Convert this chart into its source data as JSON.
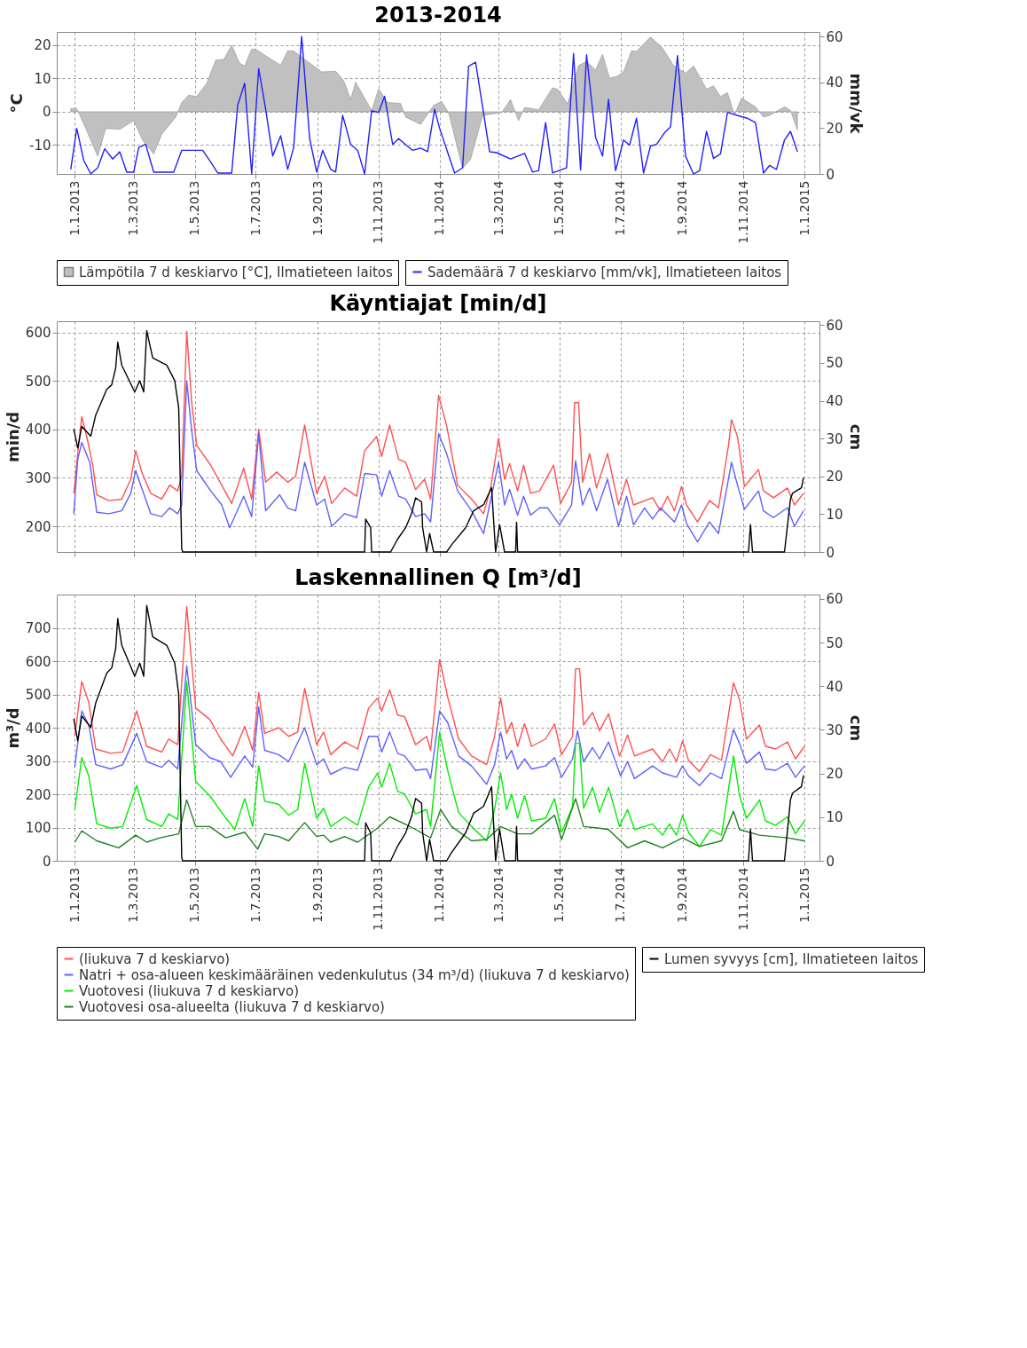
{
  "chart_data": [
    {
      "type": "line",
      "title": "2013-2014",
      "ylabel": "°C",
      "y2label": "mm/vk",
      "xlim": [
        "2012-12-14",
        "2015-01-16"
      ],
      "xticks": [
        {
          "value": "2013-01-01",
          "label": "1.1.2013"
        },
        {
          "value": "2013-03-01",
          "label": "1.3.2013"
        },
        {
          "value": "2013-05-01",
          "label": "1.5.2013"
        },
        {
          "value": "2013-07-01",
          "label": "1.7.2013"
        },
        {
          "value": "2013-09-01",
          "label": "1.9.2013"
        },
        {
          "value": "2013-11-01",
          "label": "1.11.2013"
        },
        {
          "value": "2014-01-01",
          "label": "1.1.2014"
        },
        {
          "value": "2014-03-01",
          "label": "1.3.2014"
        },
        {
          "value": "2014-05-01",
          "label": "1.5.2014"
        },
        {
          "value": "2014-07-01",
          "label": "1.7.2014"
        },
        {
          "value": "2014-09-01",
          "label": "1.9.2014"
        },
        {
          "value": "2014-11-01",
          "label": "1.11.2014"
        },
        {
          "value": "2015-01-01",
          "label": "1.1.2015"
        }
      ],
      "ylim": [
        -18.7,
        24
      ],
      "yticks": [
        -10,
        0,
        10,
        20
      ],
      "y2lim": [
        0,
        62
      ],
      "y2ticks": [
        0,
        20,
        40,
        60
      ],
      "grid": true,
      "legend": "bottom",
      "series": [
        {
          "name": "Lämpötila 7 d keskiarvo [°C], Ilmatieteen laitos",
          "type": "area",
          "color": "#c0c0c0",
          "x": [
            "2012-12-28",
            "2013-01-03",
            "2013-01-12",
            "2013-01-24",
            "2013-02-01",
            "2013-02-15",
            "2013-03-01",
            "2013-03-10",
            "2013-03-21",
            "2013-03-29",
            "2013-04-12",
            "2013-04-18",
            "2013-04-25",
            "2013-05-03",
            "2013-05-13",
            "2013-05-22",
            "2013-05-30",
            "2013-06-07",
            "2013-06-15",
            "2013-06-20",
            "2013-06-27",
            "2013-07-02",
            "2013-07-18",
            "2013-07-26",
            "2013-08-02",
            "2013-08-08",
            "2013-08-20",
            "2013-09-05",
            "2013-09-19",
            "2013-09-27",
            "2013-10-04",
            "2013-10-09",
            "2013-10-17",
            "2013-10-25",
            "2013-11-01",
            "2013-11-10",
            "2013-11-23",
            "2013-11-28",
            "2013-12-13",
            "2013-12-26",
            "2014-01-03",
            "2014-01-10",
            "2014-01-24",
            "2014-02-01",
            "2014-02-13",
            "2014-02-22",
            "2014-03-04",
            "2014-03-13",
            "2014-03-21",
            "2014-03-27",
            "2014-04-10",
            "2014-04-24",
            "2014-04-29",
            "2014-05-09",
            "2014-05-20",
            "2014-05-28",
            "2014-06-06",
            "2014-06-13",
            "2014-06-20",
            "2014-06-28",
            "2014-07-04",
            "2014-07-12",
            "2014-07-17",
            "2014-07-31",
            "2014-08-12",
            "2014-08-23",
            "2014-09-04",
            "2014-09-12",
            "2014-09-25",
            "2014-10-02",
            "2014-10-09",
            "2014-10-16",
            "2014-10-23",
            "2014-10-30",
            "2014-11-13",
            "2014-11-21",
            "2014-11-27",
            "2014-12-12",
            "2014-12-18",
            "2014-12-25"
          ],
          "values": [
            1.0,
            1.0,
            -5,
            -13.4,
            -5,
            -5.3,
            -2.7,
            -8.6,
            -12.7,
            -6.8,
            -1.6,
            2.8,
            5,
            4.6,
            8.5,
            15.5,
            15.7,
            20,
            14.6,
            13.8,
            18.9,
            18.6,
            15.5,
            14,
            18.3,
            18.3,
            15.5,
            12,
            12.2,
            9.4,
            3.7,
            8.9,
            4.6,
            0.4,
            6.9,
            2.8,
            2.5,
            -1.6,
            -3.8,
            1.9,
            3.1,
            -0.3,
            -17,
            -14.3,
            -1.1,
            -0.7,
            -0.3,
            3.7,
            -2.7,
            1.3,
            0.6,
            7.2,
            6.8,
            2.4,
            13.9,
            15.1,
            12.6,
            17.3,
            10.1,
            10.7,
            12,
            18.3,
            18.2,
            22.5,
            19.2,
            13.9,
            11.6,
            13.8,
            6.8,
            7.8,
            4.6,
            5.7,
            -1,
            4.1,
            1.5,
            -1.6,
            -1.1,
            1.5,
            0.4,
            -5.5
          ]
        },
        {
          "name": "Sademäärä 7 d keskiarvo [mm/vk], Ilmatieteen laitos",
          "type": "line",
          "axis": "y2",
          "color": "#2020ff",
          "x": [
            "2012-12-28",
            "2013-01-03",
            "2013-01-10",
            "2013-01-17",
            "2013-01-24",
            "2013-01-31",
            "2013-02-08",
            "2013-02-15",
            "2013-02-22",
            "2013-03-01",
            "2013-03-06",
            "2013-03-13",
            "2013-03-21",
            "2013-04-10",
            "2013-04-18",
            "2013-05-09",
            "2013-05-17",
            "2013-05-24",
            "2013-06-07",
            "2013-06-13",
            "2013-06-20",
            "2013-06-27",
            "2013-07-04",
            "2013-07-11",
            "2013-07-18",
            "2013-07-26",
            "2013-08-02",
            "2013-08-08",
            "2013-08-16",
            "2013-08-24",
            "2013-08-31",
            "2013-09-06",
            "2013-09-14",
            "2013-09-19",
            "2013-09-26",
            "2013-10-04",
            "2013-10-11",
            "2013-10-18",
            "2013-10-25",
            "2013-11-01",
            "2013-11-07",
            "2013-11-15",
            "2013-11-21",
            "2013-12-05",
            "2013-12-13",
            "2013-12-20",
            "2013-12-27",
            "2014-01-01",
            "2014-01-16",
            "2014-01-24",
            "2014-01-30",
            "2014-02-06",
            "2014-02-20",
            "2014-02-27",
            "2014-03-13",
            "2014-03-27",
            "2014-04-04",
            "2014-04-10",
            "2014-04-17",
            "2014-04-24",
            "2014-05-08",
            "2014-05-15",
            "2014-05-22",
            "2014-05-28",
            "2014-06-06",
            "2014-06-13",
            "2014-06-19",
            "2014-06-26",
            "2014-07-04",
            "2014-07-10",
            "2014-07-17",
            "2014-07-24",
            "2014-07-31",
            "2014-08-06",
            "2014-08-14",
            "2014-08-20",
            "2014-08-27",
            "2014-09-04",
            "2014-09-12",
            "2014-09-18",
            "2014-09-25",
            "2014-10-02",
            "2014-10-09",
            "2014-10-16",
            "2014-10-30",
            "2014-11-05",
            "2014-11-13",
            "2014-11-21",
            "2014-11-27",
            "2014-12-04",
            "2014-12-12",
            "2014-12-18",
            "2014-12-25"
          ],
          "values": [
            2,
            19.9,
            5.9,
            0,
            2.7,
            11,
            6.5,
            9.7,
            0.8,
            0.8,
            11.6,
            12.9,
            0.8,
            0.8,
            10.3,
            10.3,
            5.2,
            0.4,
            0.4,
            30,
            39.6,
            0,
            46,
            28.2,
            7.8,
            16.7,
            2,
            11.6,
            60,
            15.4,
            0.8,
            10.3,
            2,
            0.8,
            25.6,
            12.9,
            10.3,
            0,
            27.5,
            26.9,
            33.9,
            12.9,
            15.4,
            10.3,
            11.3,
            9.7,
            28.2,
            19.9,
            0.4,
            2.7,
            47,
            48.8,
            9.7,
            9.3,
            6.5,
            9,
            0.8,
            1.4,
            22.4,
            0.4,
            2.7,
            52.6,
            1.7,
            52,
            16,
            7.8,
            32.6,
            1.4,
            14.8,
            12.6,
            24.3,
            0.4,
            12.2,
            12.9,
            18,
            20.5,
            51.7,
            7.8,
            0,
            1.4,
            18.6,
            6.8,
            8.8,
            26.9,
            25,
            24.3,
            22.4,
            0.4,
            3.7,
            2,
            14.8,
            18.6,
            9.7
          ]
        }
      ]
    },
    {
      "type": "line",
      "title": "Käyntiajat [min/d]",
      "ylabel": "min/d",
      "y2label": "cm",
      "xlim": [
        "2012-12-14",
        "2015-01-16"
      ],
      "xticks": [
        {
          "value": "2013-01-01",
          "label": null
        },
        {
          "value": "2013-03-01",
          "label": null
        },
        {
          "value": "2013-05-01",
          "label": null
        },
        {
          "value": "2013-07-01",
          "label": null
        },
        {
          "value": "2013-09-01",
          "label": null
        },
        {
          "value": "2013-11-01",
          "label": null
        },
        {
          "value": "2014-01-01",
          "label": null
        },
        {
          "value": "2014-03-01",
          "label": null
        },
        {
          "value": "2014-05-01",
          "label": null
        },
        {
          "value": "2014-07-01",
          "label": null
        },
        {
          "value": "2014-09-01",
          "label": null
        },
        {
          "value": "2014-11-01",
          "label": null
        },
        {
          "value": "2015-01-01",
          "label": null
        }
      ],
      "ylim": [
        147,
        623
      ],
      "yticks": [
        200,
        300,
        400,
        500,
        600
      ],
      "y2lim": [
        0,
        61
      ],
      "y2ticks": [
        0,
        10,
        20,
        30,
        40,
        50,
        60
      ],
      "grid": true,
      "tick_labels": "y",
      "series": [
        {
          "color": "#ff5050",
          "x": [
            "2012-12-31",
            "2013-01-04",
            "2013-01-08",
            "2013-01-13",
            "2013-01-19",
            "2013-01-23",
            "2013-02-04",
            "2013-02-17",
            "2013-02-26",
            "2013-03-03",
            "2013-03-09",
            "2013-03-18",
            "2013-03-29",
            "2013-04-06",
            "2013-04-14",
            "2013-04-18",
            "2013-04-23",
            "2013-04-28",
            "2013-05-03",
            "2013-05-17",
            "2013-05-28",
            "2013-06-07",
            "2013-06-19",
            "2013-06-27",
            "2013-07-04",
            "2013-07-11",
            "2013-07-22",
            "2013-08-02",
            "2013-08-10",
            "2013-08-19",
            "2013-08-31",
            "2013-09-08",
            "2013-09-15",
            "2013-09-28",
            "2013-10-10",
            "2013-10-18",
            "2013-10-30",
            "2013-11-04",
            "2013-11-12",
            "2013-11-21",
            "2013-11-28",
            "2013-12-08",
            "2013-12-17",
            "2013-12-23",
            "2013-12-31",
            "2014-01-08",
            "2014-01-19",
            "2014-02-02",
            "2014-02-14",
            "2014-02-21",
            "2014-03-01",
            "2014-03-07",
            "2014-03-12",
            "2014-03-20",
            "2014-03-26",
            "2014-04-02",
            "2014-04-11",
            "2014-04-25",
            "2014-05-02",
            "2014-05-13",
            "2014-05-16",
            "2014-05-20",
            "2014-05-24",
            "2014-05-31",
            "2014-06-07",
            "2014-06-18",
            "2014-06-29",
            "2014-07-07",
            "2014-07-14",
            "2014-08-02",
            "2014-08-10",
            "2014-08-17",
            "2014-08-24",
            "2014-08-31",
            "2014-09-05",
            "2014-09-16",
            "2014-09-28",
            "2014-10-07",
            "2014-10-17",
            "2014-10-20",
            "2014-10-26",
            "2014-11-02",
            "2014-11-16",
            "2014-11-21",
            "2014-12-01",
            "2014-12-15",
            "2014-12-22",
            "2014-12-31"
          ],
          "values": [
            268,
            350,
            426,
            385,
            326,
            265,
            253,
            256,
            297,
            356,
            312,
            268,
            256,
            285,
            273,
            303,
            602,
            455,
            367,
            326,
            285,
            247,
            320,
            256,
            400,
            291,
            312,
            291,
            303,
            409,
            268,
            303,
            247,
            279,
            262,
            356,
            385,
            344,
            409,
            338,
            332,
            276,
            297,
            256,
            470,
            408,
            285,
            256,
            226,
            279,
            382,
            297,
            329,
            273,
            326,
            268,
            273,
            326,
            247,
            291,
            455,
            455,
            291,
            350,
            279,
            350,
            244,
            297,
            244,
            259,
            232,
            262,
            232,
            282,
            244,
            209,
            253,
            238,
            367,
            420,
            385,
            282,
            317,
            273,
            259,
            279,
            244,
            268
          ]
        },
        {
          "color": "#6060ff",
          "x": [
            "2012-12-31",
            "2013-01-04",
            "2013-01-08",
            "2013-01-16",
            "2013-01-23",
            "2013-02-04",
            "2013-02-17",
            "2013-02-26",
            "2013-03-03",
            "2013-03-09",
            "2013-03-18",
            "2013-03-29",
            "2013-04-06",
            "2013-04-14",
            "2013-04-18",
            "2013-04-23",
            "2013-04-28",
            "2013-05-03",
            "2013-05-17",
            "2013-05-28",
            "2013-06-05",
            "2013-06-19",
            "2013-06-27",
            "2013-07-04",
            "2013-07-11",
            "2013-07-25",
            "2013-08-02",
            "2013-08-10",
            "2013-08-19",
            "2013-08-31",
            "2013-09-08",
            "2013-09-15",
            "2013-09-28",
            "2013-10-10",
            "2013-10-18",
            "2013-10-30",
            "2013-11-04",
            "2013-11-12",
            "2013-11-21",
            "2013-11-28",
            "2013-12-08",
            "2013-12-17",
            "2013-12-23",
            "2013-12-31",
            "2014-01-08",
            "2014-01-19",
            "2014-02-02",
            "2014-02-14",
            "2014-03-01",
            "2014-03-07",
            "2014-03-12",
            "2014-03-20",
            "2014-03-26",
            "2014-04-02",
            "2014-04-11",
            "2014-04-19",
            "2014-05-01",
            "2014-05-13",
            "2014-05-17",
            "2014-05-24",
            "2014-05-31",
            "2014-06-07",
            "2014-06-18",
            "2014-06-29",
            "2014-07-07",
            "2014-07-14",
            "2014-07-25",
            "2014-08-02",
            "2014-08-10",
            "2014-08-24",
            "2014-08-31",
            "2014-09-05",
            "2014-09-16",
            "2014-09-28",
            "2014-10-07",
            "2014-10-20",
            "2014-10-26",
            "2014-11-02",
            "2014-11-16",
            "2014-11-21",
            "2014-12-01",
            "2014-12-15",
            "2014-12-22",
            "2014-12-31"
          ],
          "values": [
            226,
            338,
            373,
            332,
            229,
            226,
            232,
            268,
            315,
            279,
            226,
            220,
            238,
            226,
            244,
            500,
            397,
            315,
            273,
            244,
            197,
            262,
            220,
            391,
            232,
            265,
            238,
            232,
            332,
            244,
            256,
            200,
            226,
            218,
            309,
            306,
            262,
            315,
            262,
            256,
            220,
            226,
            209,
            391,
            350,
            273,
            232,
            185,
            332,
            244,
            276,
            223,
            262,
            223,
            238,
            238,
            203,
            244,
            335,
            244,
            279,
            232,
            297,
            200,
            262,
            203,
            238,
            215,
            238,
            209,
            244,
            206,
            168,
            209,
            185,
            332,
            285,
            235,
            273,
            232,
            218,
            238,
            200,
            232
          ]
        },
        {
          "color": "#000000",
          "axis": "y2",
          "x": [
            "2012-12-31",
            "2013-01-04",
            "2013-01-08",
            "2013-01-17",
            "2013-01-22",
            "2013-02-02",
            "2013-02-07",
            "2013-02-11",
            "2013-02-13",
            "2013-02-17",
            "2013-03-02",
            "2013-03-07",
            "2013-03-11",
            "2013-03-14",
            "2013-03-20",
            "2013-04-03",
            "2013-04-11",
            "2013-04-15",
            "2013-04-18",
            "2013-04-19",
            "2013-10-18",
            "2013-10-19",
            "2013-10-24",
            "2013-10-25",
            "2013-11-13",
            "2013-11-20",
            "2013-11-28",
            "2013-12-04",
            "2013-12-08",
            "2013-12-14",
            "2013-12-15",
            "2013-12-19",
            "2013-12-22",
            "2013-12-26",
            "2014-01-08",
            "2014-01-13",
            "2014-01-27",
            "2014-02-04",
            "2014-02-14",
            "2014-02-22",
            "2014-02-26",
            "2014-03-02",
            "2014-03-07",
            "2014-03-18",
            "2014-03-19",
            "2014-03-20",
            "2014-11-06",
            "2014-11-08",
            "2014-11-10",
            "2014-12-12",
            "2014-12-18",
            "2014-12-20",
            "2014-12-29",
            "2014-12-31"
          ],
          "values": [
            32.5,
            27.5,
            33.2,
            30.6,
            36.2,
            43,
            44.2,
            48.7,
            55.5,
            49.4,
            42.3,
            45.3,
            42.3,
            58.5,
            51.3,
            49.4,
            45.3,
            38.1,
            0.8,
            0,
            0,
            8.7,
            6.4,
            0,
            0,
            3.4,
            6.4,
            10.2,
            14.3,
            13.2,
            6.4,
            0,
            4.9,
            0,
            0,
            1.9,
            6.4,
            10.9,
            12.5,
            17,
            0,
            7.2,
            0,
            0,
            7.9,
            0,
            0,
            7.2,
            0,
            0,
            14,
            15.5,
            17,
            19.6
          ]
        }
      ]
    },
    {
      "type": "line",
      "title": "Laskennallinen Q [m³/d]",
      "ylabel": "m³/d",
      "y2label": "cm",
      "xlim": [
        "2012-12-14",
        "2015-01-16"
      ],
      "xticks": [
        {
          "value": "2013-01-01",
          "label": "1.1.2013"
        },
        {
          "value": "2013-03-01",
          "label": "1.3.2013"
        },
        {
          "value": "2013-05-01",
          "label": "1.5.2013"
        },
        {
          "value": "2013-07-01",
          "label": "1.7.2013"
        },
        {
          "value": "2013-09-01",
          "label": "1.9.2013"
        },
        {
          "value": "2013-11-01",
          "label": "1.11.2013"
        },
        {
          "value": "2014-01-01",
          "label": "1.1.2014"
        },
        {
          "value": "2014-03-01",
          "label": "1.3.2014"
        },
        {
          "value": "2014-05-01",
          "label": "1.5.2014"
        },
        {
          "value": "2014-07-01",
          "label": "1.7.2014"
        },
        {
          "value": "2014-09-01",
          "label": "1.9.2014"
        },
        {
          "value": "2014-11-01",
          "label": "1.11.2014"
        },
        {
          "value": "2015-01-01",
          "label": "1.1.2015"
        }
      ],
      "ylim": [
        0,
        800
      ],
      "yticks": [
        0,
        100,
        200,
        300,
        400,
        500,
        600,
        700
      ],
      "y2lim": [
        0,
        61
      ],
      "y2ticks": [
        0,
        10,
        20,
        30,
        40,
        50,
        60
      ],
      "grid": true,
      "legend": "bottom",
      "series": [
        {
          "name": "(liukuva 7 d keskiarvo)",
          "color": "#ff5050",
          "x": [
            "2013-01-01",
            "2013-01-08",
            "2013-01-15",
            "2013-01-22",
            "2013-02-06",
            "2013-02-18",
            "2013-03-04",
            "2013-03-14",
            "2013-03-29",
            "2013-04-05",
            "2013-04-14",
            "2013-04-23",
            "2013-05-02",
            "2013-05-16",
            "2013-05-27",
            "2013-06-08",
            "2013-06-20",
            "2013-06-28",
            "2013-07-04",
            "2013-07-10",
            "2013-07-24",
            "2013-08-03",
            "2013-08-12",
            "2013-08-19",
            "2013-08-31",
            "2013-09-07",
            "2013-09-14",
            "2013-09-28",
            "2013-10-11",
            "2013-10-22",
            "2013-10-31",
            "2013-11-04",
            "2013-11-12",
            "2013-11-20",
            "2013-11-27",
            "2013-12-08",
            "2013-12-19",
            "2013-12-23",
            "2014-01-01",
            "2014-01-09",
            "2014-01-20",
            "2014-02-02",
            "2014-02-17",
            "2014-02-25",
            "2014-03-03",
            "2014-03-09",
            "2014-03-14",
            "2014-03-20",
            "2014-03-27",
            "2014-04-03",
            "2014-04-17",
            "2014-04-26",
            "2014-05-03",
            "2014-05-14",
            "2014-05-17",
            "2014-05-21",
            "2014-05-25",
            "2014-06-03",
            "2014-06-10",
            "2014-06-19",
            "2014-06-30",
            "2014-07-08",
            "2014-07-15",
            "2014-08-02",
            "2014-08-12",
            "2014-08-19",
            "2014-08-26",
            "2014-09-01",
            "2014-09-07",
            "2014-09-18",
            "2014-09-29",
            "2014-10-10",
            "2014-10-18",
            "2014-10-22",
            "2014-10-28",
            "2014-11-04",
            "2014-11-17",
            "2014-11-23",
            "2014-12-03",
            "2014-12-15",
            "2014-12-23",
            "2015-01-01"
          ],
          "values": [
            374,
            539,
            476,
            336,
            323,
            327,
            450,
            344,
            327,
            366,
            349,
            764,
            459,
            425,
            366,
            315,
            404,
            332,
            506,
            383,
            400,
            374,
            387,
            518,
            349,
            387,
            319,
            357,
            336,
            459,
            489,
            450,
            514,
            438,
            433,
            349,
            374,
            332,
            605,
            493,
            366,
            315,
            289,
            374,
            489,
            383,
            416,
            344,
            412,
            344,
            366,
            412,
            319,
            374,
            577,
            577,
            408,
            446,
            391,
            442,
            315,
            378,
            315,
            336,
            298,
            336,
            298,
            361,
            302,
            268,
            319,
            302,
            459,
            535,
            484,
            366,
            408,
            344,
            336,
            357,
            306,
            344
          ]
        },
        {
          "name": "Natri + osa-alueen keskimääräinen vedenkulutus (34 m³/d) (liukuva 7 d keskiarvo)",
          "color": "#6060ff",
          "x": [
            "2013-01-01",
            "2013-01-08",
            "2013-01-15",
            "2013-01-22",
            "2013-02-06",
            "2013-02-18",
            "2013-03-04",
            "2013-03-14",
            "2013-03-29",
            "2013-04-05",
            "2013-04-14",
            "2013-04-23",
            "2013-05-02",
            "2013-05-16",
            "2013-05-27",
            "2013-06-06",
            "2013-06-20",
            "2013-06-28",
            "2013-07-04",
            "2013-07-10",
            "2013-07-24",
            "2013-08-03",
            "2013-08-19",
            "2013-08-31",
            "2013-09-07",
            "2013-09-14",
            "2013-09-28",
            "2013-10-11",
            "2013-10-22",
            "2013-10-31",
            "2013-11-04",
            "2013-11-12",
            "2013-11-20",
            "2013-11-27",
            "2013-12-08",
            "2013-12-19",
            "2013-12-23",
            "2014-01-01",
            "2014-01-09",
            "2014-01-20",
            "2014-02-02",
            "2014-02-17",
            "2014-02-25",
            "2014-03-03",
            "2014-03-09",
            "2014-03-14",
            "2014-03-20",
            "2014-03-27",
            "2014-04-03",
            "2014-04-17",
            "2014-04-26",
            "2014-05-03",
            "2014-05-14",
            "2014-05-19",
            "2014-05-25",
            "2014-06-03",
            "2014-06-10",
            "2014-06-19",
            "2014-07-01",
            "2014-07-08",
            "2014-07-15",
            "2014-08-02",
            "2014-08-12",
            "2014-08-26",
            "2014-09-01",
            "2014-09-07",
            "2014-09-18",
            "2014-09-29",
            "2014-10-10",
            "2014-10-22",
            "2014-10-28",
            "2014-11-04",
            "2014-11-17",
            "2014-11-23",
            "2014-12-03",
            "2014-12-15",
            "2014-12-23",
            "2015-01-01"
          ],
          "values": [
            281,
            450,
            408,
            289,
            276,
            289,
            383,
            298,
            281,
            302,
            276,
            586,
            349,
            310,
            298,
            251,
            315,
            281,
            463,
            332,
            319,
            298,
            400,
            289,
            306,
            260,
            281,
            272,
            374,
            374,
            327,
            387,
            323,
            315,
            272,
            276,
            247,
            450,
            416,
            315,
            285,
            230,
            289,
            387,
            306,
            332,
            276,
            306,
            276,
            285,
            310,
            251,
            306,
            391,
            298,
            340,
            306,
            357,
            255,
            298,
            247,
            285,
            264,
            251,
            285,
            255,
            226,
            264,
            247,
            395,
            353,
            293,
            327,
            276,
            272,
            293,
            251,
            285
          ]
        },
        {
          "name": "Vuotovesi (liukuva 7 d keskiarvo)",
          "color": "#00ee00",
          "x": [
            "2013-01-01",
            "2013-01-08",
            "2013-01-15",
            "2013-01-23",
            "2013-02-06",
            "2013-02-18",
            "2013-03-04",
            "2013-03-14",
            "2013-03-29",
            "2013-04-05",
            "2013-04-14",
            "2013-04-23",
            "2013-05-02",
            "2013-05-16",
            "2013-05-27",
            "2013-06-10",
            "2013-06-20",
            "2013-06-28",
            "2013-07-04",
            "2013-07-10",
            "2013-07-24",
            "2013-08-03",
            "2013-08-12",
            "2013-08-19",
            "2013-08-31",
            "2013-09-07",
            "2013-09-14",
            "2013-09-28",
            "2013-10-11",
            "2013-10-22",
            "2013-10-31",
            "2013-11-04",
            "2013-11-12",
            "2013-11-20",
            "2013-11-27",
            "2013-12-08",
            "2013-12-19",
            "2013-12-23",
            "2014-01-01",
            "2014-01-09",
            "2014-01-20",
            "2014-02-02",
            "2014-02-17",
            "2014-02-25",
            "2014-03-03",
            "2014-03-09",
            "2014-03-14",
            "2014-03-20",
            "2014-03-27",
            "2014-04-03",
            "2014-04-17",
            "2014-04-26",
            "2014-05-03",
            "2014-05-14",
            "2014-05-17",
            "2014-05-21",
            "2014-05-25",
            "2014-06-03",
            "2014-06-10",
            "2014-06-19",
            "2014-06-30",
            "2014-07-08",
            "2014-07-15",
            "2014-08-02",
            "2014-08-12",
            "2014-08-19",
            "2014-08-26",
            "2014-09-01",
            "2014-09-07",
            "2014-09-18",
            "2014-09-29",
            "2014-10-10",
            "2014-10-22",
            "2014-10-28",
            "2014-11-04",
            "2014-11-17",
            "2014-11-23",
            "2014-12-03",
            "2014-12-15",
            "2014-12-23",
            "2015-01-01"
          ],
          "values": [
            154,
            310,
            255,
            111,
            98,
            103,
            226,
            124,
            103,
            141,
            124,
            539,
            238,
            196,
            149,
            94,
            187,
            103,
            285,
            179,
            170,
            137,
            154,
            293,
            128,
            158,
            103,
            132,
            107,
            221,
            264,
            221,
            293,
            209,
            200,
            141,
            154,
            103,
            387,
            272,
            145,
            103,
            60,
            154,
            264,
            154,
            200,
            128,
            196,
            120,
            128,
            187,
            86,
            162,
            353,
            353,
            158,
            221,
            145,
            221,
            103,
            154,
            94,
            111,
            77,
            111,
            77,
            137,
            86,
            43,
            94,
            77,
            315,
            196,
            128,
            183,
            120,
            107,
            132,
            81,
            120
          ]
        },
        {
          "name": "Vuotovesi osa-alueelta (liukuva 7 d keskiarvo)",
          "color": "#208020",
          "x": [
            "2013-01-01",
            "2013-01-08",
            "2013-01-23",
            "2013-02-14",
            "2013-03-03",
            "2013-03-14",
            "2013-03-27",
            "2013-04-15",
            "2013-04-23",
            "2013-05-02",
            "2013-05-16",
            "2013-06-01",
            "2013-06-20",
            "2013-07-03",
            "2013-07-10",
            "2013-07-24",
            "2013-08-03",
            "2013-08-19",
            "2013-08-31",
            "2013-09-07",
            "2013-09-14",
            "2013-09-28",
            "2013-10-11",
            "2013-10-31",
            "2013-11-12",
            "2013-11-27",
            "2013-12-08",
            "2013-12-23",
            "2014-01-02",
            "2014-01-13",
            "2014-02-02",
            "2014-02-17",
            "2014-03-03",
            "2014-03-20",
            "2014-04-03",
            "2014-04-26",
            "2014-05-03",
            "2014-05-17",
            "2014-05-25",
            "2014-06-10",
            "2014-06-19",
            "2014-07-08",
            "2014-07-25",
            "2014-08-12",
            "2014-09-01",
            "2014-09-18",
            "2014-10-10",
            "2014-10-22",
            "2014-10-28",
            "2014-11-17",
            "2014-12-15",
            "2015-01-01"
          ],
          "values": [
            56,
            90,
            60,
            39,
            77,
            56,
            69,
            81,
            183,
            103,
            103,
            69,
            86,
            35,
            81,
            73,
            60,
            115,
            73,
            77,
            56,
            73,
            56,
            98,
            132,
            111,
            94,
            69,
            154,
            103,
            60,
            64,
            103,
            81,
            81,
            137,
            64,
            187,
            103,
            98,
            94,
            39,
            60,
            39,
            69,
            43,
            60,
            149,
            94,
            77,
            69,
            60
          ]
        },
        {
          "name": "Lumen syvyys [cm], Ilmatieteen laitos",
          "color": "#000000",
          "axis": "y2",
          "x": [
            "2012-12-31",
            "2013-01-04",
            "2013-01-08",
            "2013-01-17",
            "2013-01-22",
            "2013-02-02",
            "2013-02-07",
            "2013-02-11",
            "2013-02-13",
            "2013-02-17",
            "2013-03-02",
            "2013-03-07",
            "2013-03-11",
            "2013-03-14",
            "2013-03-20",
            "2013-04-03",
            "2013-04-11",
            "2013-04-15",
            "2013-04-18",
            "2013-04-19",
            "2013-10-18",
            "2013-10-19",
            "2013-10-24",
            "2013-10-25",
            "2013-11-13",
            "2013-11-20",
            "2013-11-28",
            "2013-12-04",
            "2013-12-08",
            "2013-12-14",
            "2013-12-15",
            "2013-12-19",
            "2013-12-22",
            "2013-12-26",
            "2014-01-08",
            "2014-01-13",
            "2014-01-27",
            "2014-02-04",
            "2014-02-14",
            "2014-02-22",
            "2014-02-26",
            "2014-03-02",
            "2014-03-07",
            "2014-03-18",
            "2014-03-19",
            "2014-03-20",
            "2014-11-06",
            "2014-11-08",
            "2014-11-10",
            "2014-12-12",
            "2014-12-18",
            "2014-12-20",
            "2014-12-29",
            "2014-12-31"
          ],
          "values": [
            32.5,
            27.5,
            33.2,
            30.6,
            36.2,
            43,
            44.2,
            48.7,
            55.5,
            49.4,
            42.3,
            45.3,
            42.3,
            58.5,
            51.3,
            49.4,
            45.3,
            38.1,
            0.8,
            0,
            0,
            8.7,
            6.4,
            0,
            0,
            3.4,
            6.4,
            10.2,
            14.3,
            13.2,
            6.4,
            0,
            4.9,
            0,
            0,
            1.9,
            6.4,
            10.9,
            12.5,
            17,
            0,
            7.2,
            0,
            0,
            7.9,
            0,
            0,
            7.2,
            0,
            0,
            14,
            15.5,
            17,
            19.6
          ]
        }
      ]
    }
  ]
}
